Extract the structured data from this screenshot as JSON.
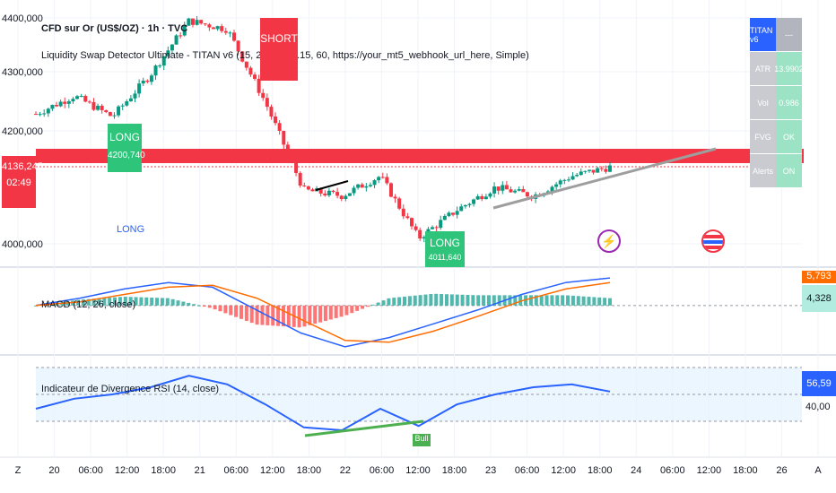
{
  "header": {
    "symbol_line": "CFD sur Or (US$/OZ) · 1h · TVC",
    "indicator_line": "Liquidity Swap Detector Ultimate - TITAN v6 (15, 2, 0.35, 0.15, 60, https://your_mt5_webhook_url_here, Simple)"
  },
  "price_axis": {
    "ticks": [
      "4400,000",
      "4300,000",
      "4200,000",
      "4000,000"
    ],
    "current_price": "4136,245",
    "countdown": "02:49"
  },
  "time_axis": {
    "labels": [
      "Z",
      "20",
      "06:00",
      "12:00",
      "18:00",
      "21",
      "06:00",
      "12:00",
      "18:00",
      "22",
      "06:00",
      "12:00",
      "18:00",
      "23",
      "06:00",
      "12:00",
      "18:00",
      "24",
      "06:00",
      "12:00",
      "18:00",
      "26",
      "A"
    ]
  },
  "signals": {
    "long_1_label": "LONG",
    "long_1_price": "4200,740",
    "long_1_text_below": "LONG",
    "short_label": "SHORT",
    "long_2_label": "LONG",
    "long_2_price": "4011,640"
  },
  "titan_table": {
    "header_left": "TITAN v6",
    "header_right": "---",
    "rows": [
      {
        "label": "ATR",
        "value": "13.9902"
      },
      {
        "label": "Vol",
        "value": "0.986"
      },
      {
        "label": "FVG",
        "value": "OK"
      },
      {
        "label": "Alerts",
        "value": "ON"
      }
    ],
    "colors": {
      "header_left": "#2962ff",
      "header_right": "#b2b5be",
      "label_bg": "#c9cbd1",
      "value_bg": "#9be3c4"
    }
  },
  "macd_pane": {
    "title": "MACD (12, 26, close)",
    "value_top": "5,793",
    "value_bottom": "4,328"
  },
  "rsi_pane": {
    "title": "Indicateur de Divergence RSI (14, close)",
    "value": "56,59",
    "level": "40,00",
    "bull_label": "Bull"
  },
  "colors": {
    "up": "#089981",
    "down": "#f23645",
    "macd_line": "#2962ff",
    "signal_line": "#ff6d00",
    "rsi_line": "#2962ff",
    "price_tag": "#f23645"
  },
  "chart_data": {
    "type": "line",
    "title": "CFD sur Or (US$/OZ) · 1h · TVC",
    "ylim": [
      3960,
      4420
    ],
    "yticks": [
      4000,
      4200,
      4300,
      4400
    ],
    "approx_close_path": [
      {
        "x": "20 00:00",
        "y": 4230
      },
      {
        "x": "20 06:00",
        "y": 4262
      },
      {
        "x": "20 12:00",
        "y": 4225
      },
      {
        "x": "20 18:00",
        "y": 4300
      },
      {
        "x": "21 00:00",
        "y": 4395
      },
      {
        "x": "21 06:00",
        "y": 4380
      },
      {
        "x": "21 12:00",
        "y": 4250
      },
      {
        "x": "21 18:00",
        "y": 4095
      },
      {
        "x": "22 00:00",
        "y": 4085
      },
      {
        "x": "22 06:00",
        "y": 4120
      },
      {
        "x": "22 12:00",
        "y": 4010
      },
      {
        "x": "22 18:00",
        "y": 4060
      },
      {
        "x": "23 00:00",
        "y": 4100
      },
      {
        "x": "23 06:00",
        "y": 4085
      },
      {
        "x": "23 12:00",
        "y": 4120
      },
      {
        "x": "23 18:00",
        "y": 4136
      }
    ],
    "macd": {
      "series": [
        {
          "name": "MACD",
          "values": [
            0,
            8,
            18,
            25,
            20,
            -5,
            -30,
            -45,
            -35,
            -20,
            -5,
            12,
            25,
            30
          ]
        },
        {
          "name": "Signal",
          "values": [
            0,
            4,
            12,
            20,
            22,
            8,
            -15,
            -38,
            -40,
            -28,
            -12,
            5,
            18,
            25
          ]
        }
      ]
    },
    "rsi": {
      "level": 40,
      "values": [
        45,
        52,
        55,
        60,
        68,
        62,
        48,
        32,
        30,
        45,
        33,
        48,
        55,
        60,
        62,
        57
      ]
    }
  }
}
